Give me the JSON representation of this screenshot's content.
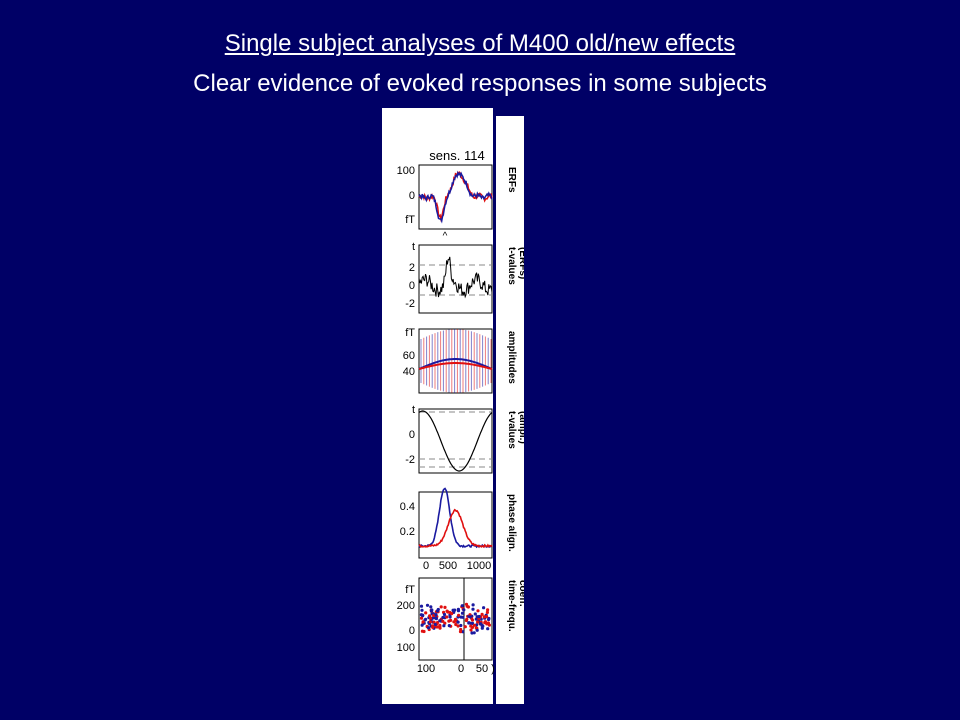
{
  "slide": {
    "title": "Single subject analyses of M400 old/new effects",
    "subtitle": "Clear evidence of evoked responses in some subjects"
  },
  "colors": {
    "background": "#000066",
    "text": "#ffffff",
    "series_a": "#1a1aa0",
    "series_b": "#e01010",
    "black": "#000000"
  },
  "figure": {
    "sensor_label": "sens. 114",
    "panels": [
      {
        "id": "erfs",
        "side_label": [
          "ERFs"
        ],
        "y_ticks": [
          "100",
          "0",
          "fT"
        ],
        "marker": "^"
      },
      {
        "id": "tvals-erfs",
        "side_label": [
          "t-values",
          "(ERFs)"
        ],
        "y_ticks": [
          "t",
          "2",
          "0",
          "-2"
        ]
      },
      {
        "id": "amplitudes",
        "side_label": [
          "amplitudes"
        ],
        "y_ticks": [
          "fT",
          "60",
          "40"
        ]
      },
      {
        "id": "tvals-ampl",
        "side_label": [
          "t-values",
          "(ampl.)"
        ],
        "y_ticks": [
          "t",
          "0",
          "-2"
        ]
      },
      {
        "id": "phase",
        "side_label": [
          "phase align."
        ],
        "y_ticks": [
          "0.4",
          "0.2"
        ],
        "x_ticks": [
          "0",
          "500",
          "1000"
        ]
      },
      {
        "id": "tf",
        "side_label": [
          "time-frequ.",
          "coeff."
        ],
        "y_ticks": [
          "fT",
          "200",
          "0",
          "100"
        ],
        "x_ticks": [
          "100",
          "0",
          "50",
          ")"
        ]
      }
    ]
  }
}
